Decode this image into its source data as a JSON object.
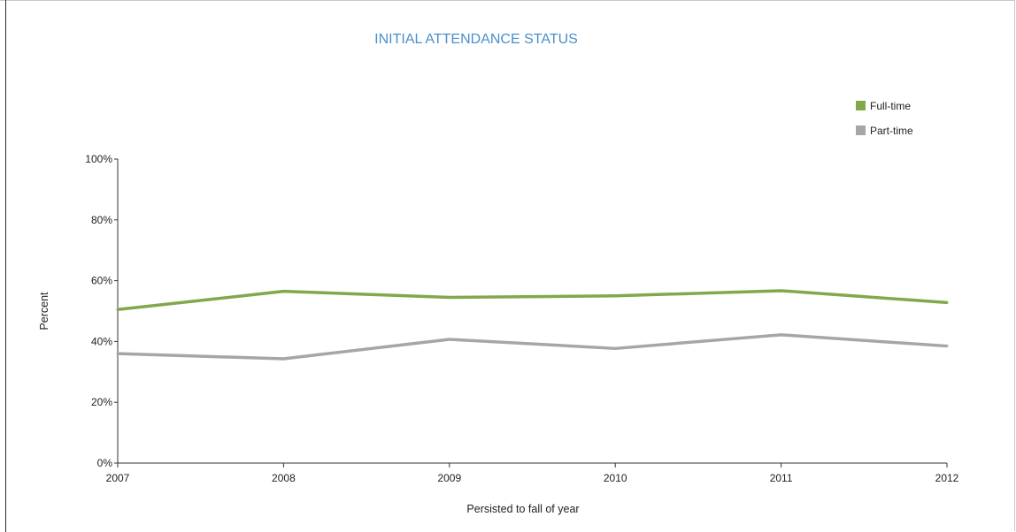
{
  "chart_data": {
    "type": "line",
    "title": "INITIAL ATTENDANCE STATUS",
    "xlabel": "Persisted to fall of year",
    "ylabel": "Percent",
    "x": [
      "2007",
      "2008",
      "2009",
      "2010",
      "2011",
      "2012"
    ],
    "series": [
      {
        "name": "Full-time",
        "color": "#82a84a",
        "values": [
          50.5,
          56.5,
          54.5,
          55.0,
          56.7,
          52.8
        ]
      },
      {
        "name": "Part-time",
        "color": "#a6a6a6",
        "values": [
          36.0,
          34.3,
          40.7,
          37.7,
          42.2,
          38.5
        ]
      }
    ],
    "ylim": [
      0,
      100
    ],
    "yticks": [
      0,
      20,
      40,
      60,
      80,
      100
    ],
    "ytick_labels": [
      "0%",
      "20%",
      "40%",
      "60%",
      "80%",
      "100%"
    ],
    "grid": false,
    "legend_position": "top-right"
  }
}
